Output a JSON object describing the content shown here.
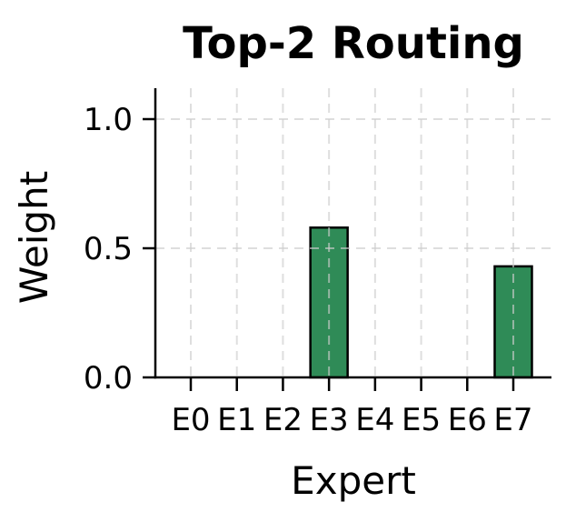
{
  "chart_data": {
    "type": "bar",
    "title": "Top-2 Routing",
    "xlabel": "Expert",
    "ylabel": "Weight",
    "categories": [
      "E0",
      "E1",
      "E2",
      "E3",
      "E4",
      "E5",
      "E6",
      "E7"
    ],
    "values": [
      0,
      0,
      0,
      0.58,
      0,
      0,
      0,
      0.43
    ],
    "ytick_values": [
      0,
      0.5,
      1.0
    ],
    "ytick_labels": [
      "0.0",
      "0.5",
      "1.0"
    ],
    "ylim": [
      0,
      1.12
    ],
    "grid": "dashed vertical at each category and horizontal at yticks, drawn above bars",
    "legend": "none",
    "colors": {
      "bar_fill": "#2f8b57",
      "bar_edge": "#000000",
      "grid": "#cccccc",
      "axis": "#000000",
      "text": "#000000",
      "background": "#ffffff"
    }
  }
}
